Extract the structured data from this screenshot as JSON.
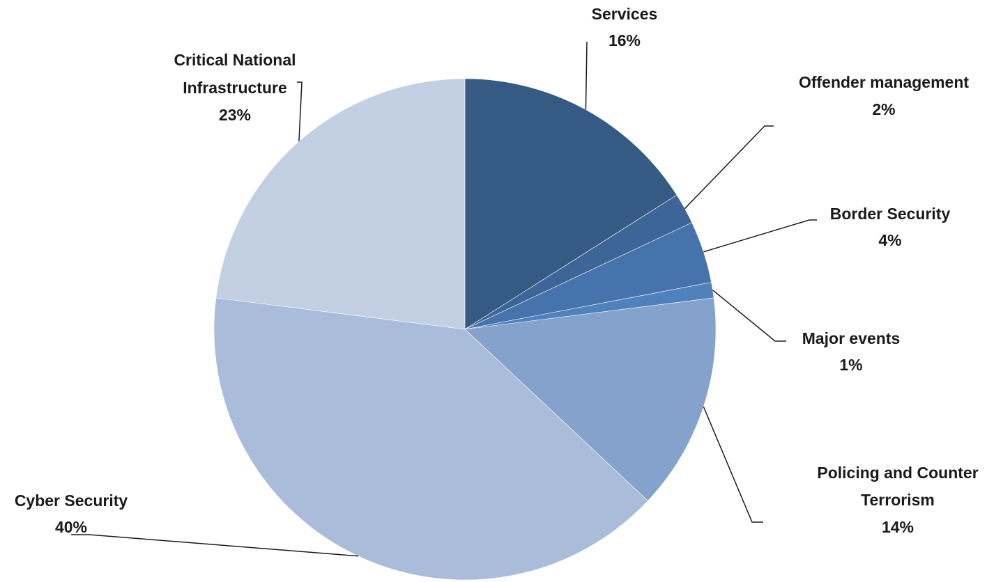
{
  "chart_data": {
    "type": "pie",
    "title": "",
    "start_angle_deg": 0,
    "direction": "clockwise",
    "slices": [
      {
        "label": "Services",
        "value_label": "16%",
        "value": 16,
        "color": "#355a83"
      },
      {
        "label": "Offender management",
        "value_label": "2%",
        "value": 2,
        "color": "#3d6597"
      },
      {
        "label": "Border Security",
        "value_label": "4%",
        "value": 4,
        "color": "#4673ab"
      },
      {
        "label": "Major events",
        "value_label": "1%",
        "value": 1,
        "color": "#4f81bd"
      },
      {
        "label": "Policing and Counter Terrorism",
        "value_label": "14%",
        "value": 14,
        "color": "#84a2cb"
      },
      {
        "label": "Cyber Security",
        "value_label": "40%",
        "value": 40,
        "color": "#a9bcda"
      },
      {
        "label": "Critical National Infrastructure",
        "value_label": "23%",
        "value": 23,
        "color": "#c3d0e3"
      }
    ]
  }
}
